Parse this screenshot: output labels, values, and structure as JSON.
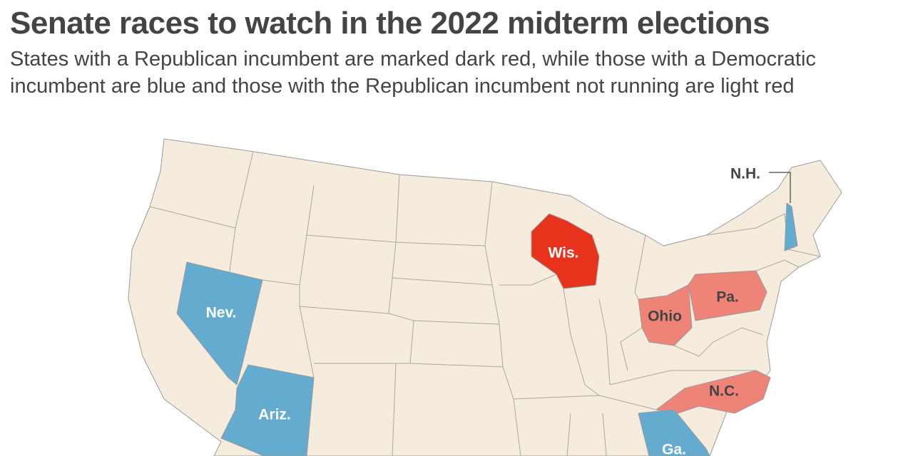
{
  "header": {
    "title": "Senate races to watch in the 2022 midterm elections",
    "subtitle": "States with a Republican incumbent are marked dark red, while those with a Democratic incumbent are blue and those with the Republican incumbent not running are light red"
  },
  "map": {
    "base_color": "#f6ecdd",
    "states": [
      {
        "label": "Nev.",
        "color": "#63acd0"
      },
      {
        "label": "Ariz.",
        "color": "#63acd0"
      },
      {
        "label": "Wis.",
        "color": "#e8331c"
      },
      {
        "label": "Ohio",
        "color": "#f08378"
      },
      {
        "label": "Pa.",
        "color": "#f08378"
      },
      {
        "label": "N.C.",
        "color": "#f08378"
      },
      {
        "label": "Ga.",
        "color": "#63acd0"
      },
      {
        "label": "N.H.",
        "color": "#63acd0"
      }
    ]
  }
}
